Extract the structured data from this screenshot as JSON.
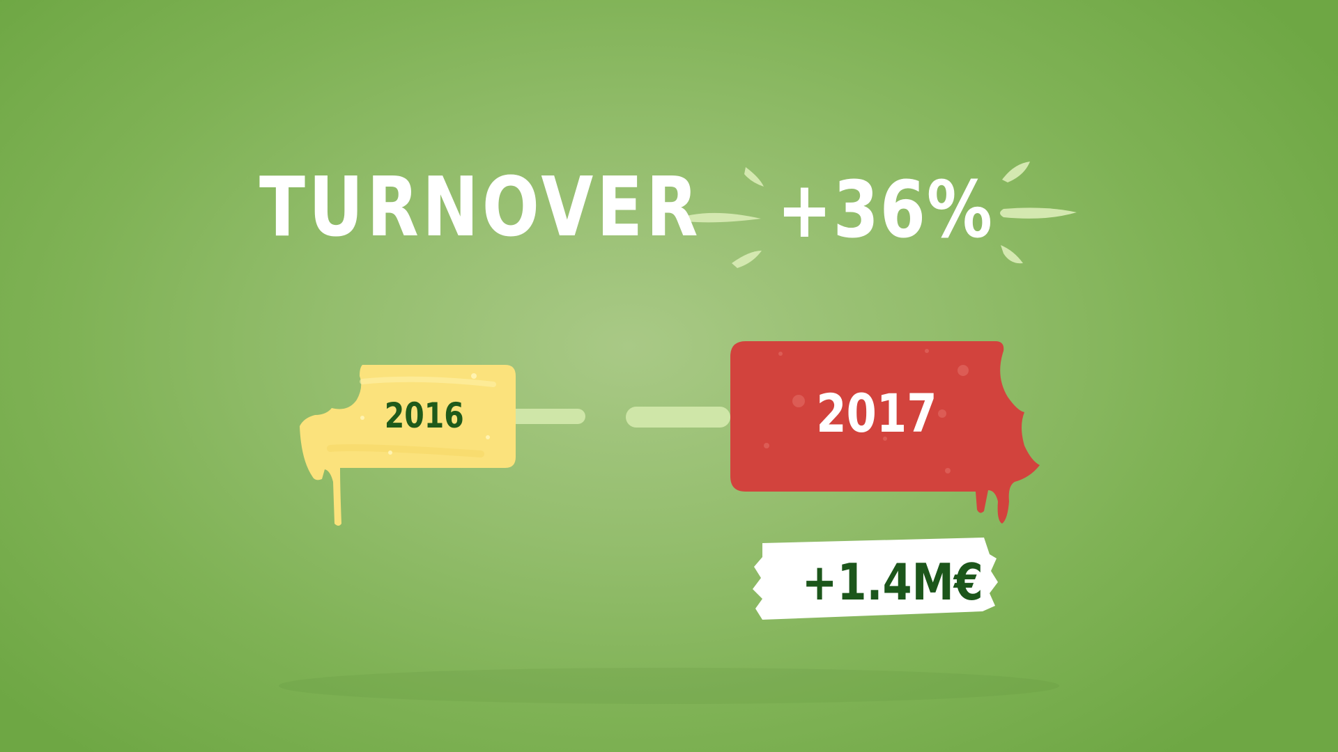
{
  "headline": {
    "title": "TURNOVER",
    "change": "+36%"
  },
  "comparison": {
    "previous_year": "2016",
    "current_year": "2017",
    "increase": "+1.4M€"
  },
  "colors": {
    "background": "#7fb255",
    "previous_bar": "#fbe27c",
    "current_bar": "#d2433d",
    "stick": "#cfe6a8",
    "text_dark": "#1f5a1a",
    "text_light": "#ffffff"
  }
}
